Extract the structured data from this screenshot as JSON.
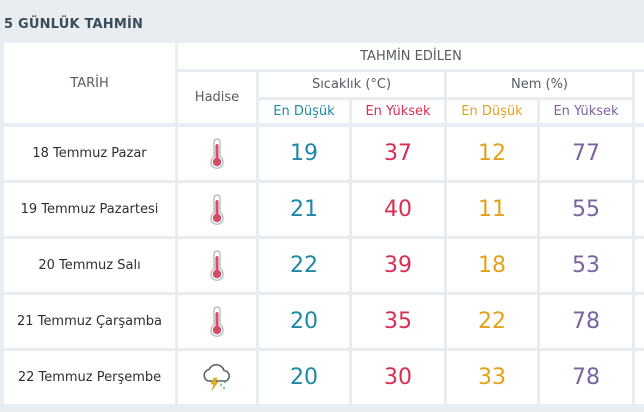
{
  "title": "5 GÜNLÜK TAHMİN",
  "header": {
    "date_col": "TARİH",
    "forecast": "TAHMİN EDİLEN",
    "event": "Hadise",
    "temperature": "Sıcaklık (°C)",
    "humidity": "Nem (%)",
    "low": "En Düşük",
    "high": "En Yüksek"
  },
  "colors": {
    "low": "#1d88a8",
    "high": "#d92e54",
    "humidity_low": "#e5a11d",
    "humidity_high": "#7a64a0"
  },
  "rows": [
    {
      "date": "18 Temmuz Pazar",
      "icon": "thermometer-hot-icon",
      "temp_low": "19",
      "temp_high": "37",
      "hum_low": "12",
      "hum_high": "77"
    },
    {
      "date": "19 Temmuz Pazartesi",
      "icon": "thermometer-hot-icon",
      "temp_low": "21",
      "temp_high": "40",
      "hum_low": "11",
      "hum_high": "55"
    },
    {
      "date": "20 Temmuz Salı",
      "icon": "thermometer-hot-icon",
      "temp_low": "22",
      "temp_high": "39",
      "hum_low": "18",
      "hum_high": "53"
    },
    {
      "date": "21 Temmuz Çarşamba",
      "icon": "thermometer-hot-icon",
      "temp_low": "20",
      "temp_high": "35",
      "hum_low": "22",
      "hum_high": "78"
    },
    {
      "date": "22 Temmuz Perşembe",
      "icon": "thunderstorm-rain-icon",
      "temp_low": "20",
      "temp_high": "30",
      "hum_low": "33",
      "hum_high": "78"
    }
  ]
}
